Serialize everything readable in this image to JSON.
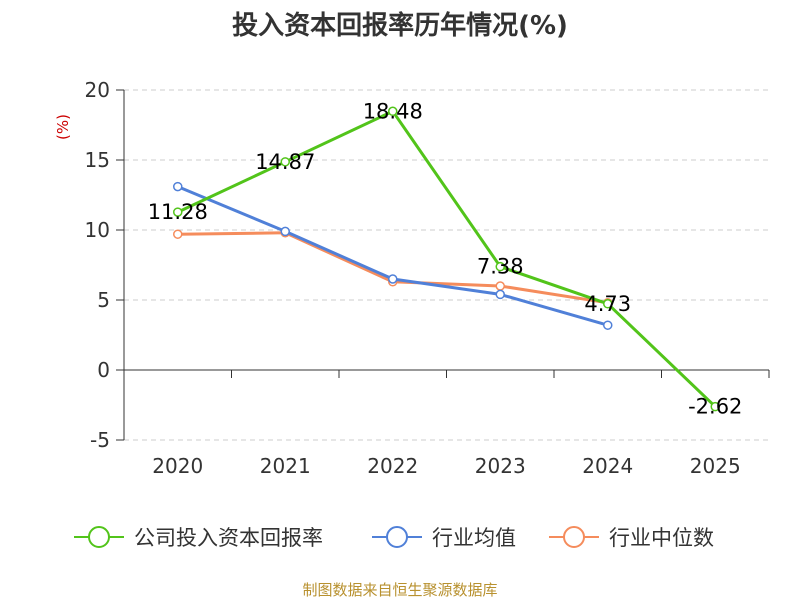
{
  "chart_data": {
    "type": "line",
    "title": "投入资本回报率历年情况(%)",
    "ylabel": "(%)",
    "xlabel": "",
    "categories": [
      "2020",
      "2021",
      "2022",
      "2023",
      "2024",
      "2025"
    ],
    "ylim": [
      -5,
      20
    ],
    "yticks": [
      20,
      15,
      10,
      5,
      0,
      -5
    ],
    "grid": true,
    "legend_position": "bottom",
    "series": [
      {
        "name": "公司投入资本回报率",
        "color": "#52c41a",
        "values": [
          11.28,
          14.87,
          18.48,
          7.38,
          4.73,
          -2.62
        ],
        "labels": [
          "11.28",
          "14.87",
          "18.48",
          "7.38",
          "4.73",
          "-2.62"
        ]
      },
      {
        "name": "行业均值",
        "color": "#5080d8",
        "values": [
          13.1,
          9.9,
          6.5,
          5.4,
          3.2,
          null
        ]
      },
      {
        "name": "行业中位数",
        "color": "#f58c5c",
        "values": [
          9.7,
          9.8,
          6.3,
          6.0,
          4.8,
          null
        ]
      }
    ]
  },
  "footer": "制图数据来自恒生聚源数据库"
}
